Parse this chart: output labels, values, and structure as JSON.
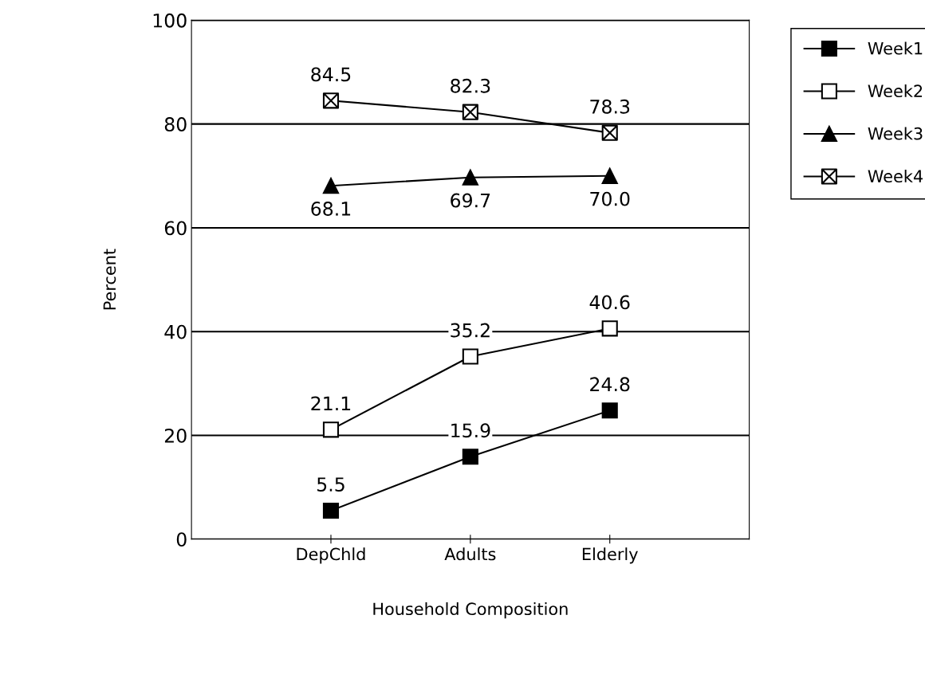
{
  "chart_data": {
    "type": "line",
    "xlabel": "Household Composition",
    "ylabel": "Percent",
    "categories": [
      "DepChld",
      "Adults",
      "Elderly"
    ],
    "series": [
      {
        "name": "Week1",
        "color": "#000000",
        "marker": "square",
        "values": [
          5.5,
          15.9,
          24.8
        ],
        "value_labels": [
          "5.5",
          "15.9",
          "24.8"
        ]
      },
      {
        "name": "Week2",
        "color": "#000000",
        "marker": "square",
        "values": [
          21.1,
          35.2,
          40.6
        ],
        "value_labels": [
          "21.1",
          "35.2",
          "40.6"
        ]
      },
      {
        "name": "Week3",
        "color": "#000000",
        "marker": "triangle",
        "values": [
          68.1,
          69.7,
          70.0
        ],
        "value_labels": [
          "68.1",
          "69.7",
          "70.0"
        ]
      },
      {
        "name": "Week4",
        "color": "#000000",
        "marker": "cross",
        "values": [
          84.5,
          82.3,
          78.3
        ],
        "value_labels": [
          "84.5",
          "82.3",
          "78.3"
        ]
      }
    ],
    "ylim": [
      0,
      100
    ],
    "yticks": [
      0,
      20,
      40,
      60,
      80,
      100
    ],
    "grid": "y",
    "legend": "top right"
  }
}
